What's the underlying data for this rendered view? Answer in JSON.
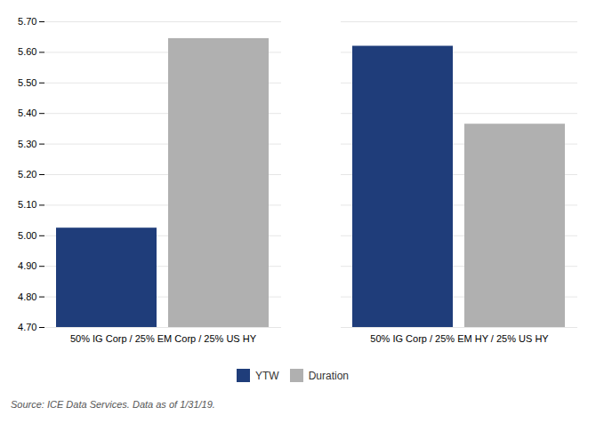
{
  "chart_data": {
    "type": "bar",
    "categories": [
      "50% IG Corp / 25% EM Corp / 25% US HY",
      "50% IG Corp / 25% EM HY / 25% US HY"
    ],
    "series": [
      {
        "name": "YTW",
        "color": "#1F3D7A",
        "values": [
          5.025,
          5.62
        ]
      },
      {
        "name": "Duration",
        "color": "#B0B0B0",
        "values": [
          5.645,
          5.365
        ]
      }
    ],
    "ylim": [
      4.7,
      5.7
    ],
    "yticks": [
      {
        "value": 4.7,
        "label": "4.70"
      },
      {
        "value": 4.8,
        "label": "4.80"
      },
      {
        "value": 4.9,
        "label": "4.90"
      },
      {
        "value": 5.0,
        "label": "5.00"
      },
      {
        "value": 5.1,
        "label": "5.10"
      },
      {
        "value": 5.2,
        "label": "5.20"
      },
      {
        "value": 5.3,
        "label": "5.30"
      },
      {
        "value": 5.4,
        "label": "5.40"
      },
      {
        "value": 5.5,
        "label": "5.50"
      },
      {
        "value": 5.6,
        "label": "5.60"
      },
      {
        "value": 5.7,
        "label": "5.70"
      }
    ],
    "grid": true,
    "legend": "bottom",
    "annotations": [
      "Source: ICE Data Services. Data as of 1/31/19."
    ]
  }
}
